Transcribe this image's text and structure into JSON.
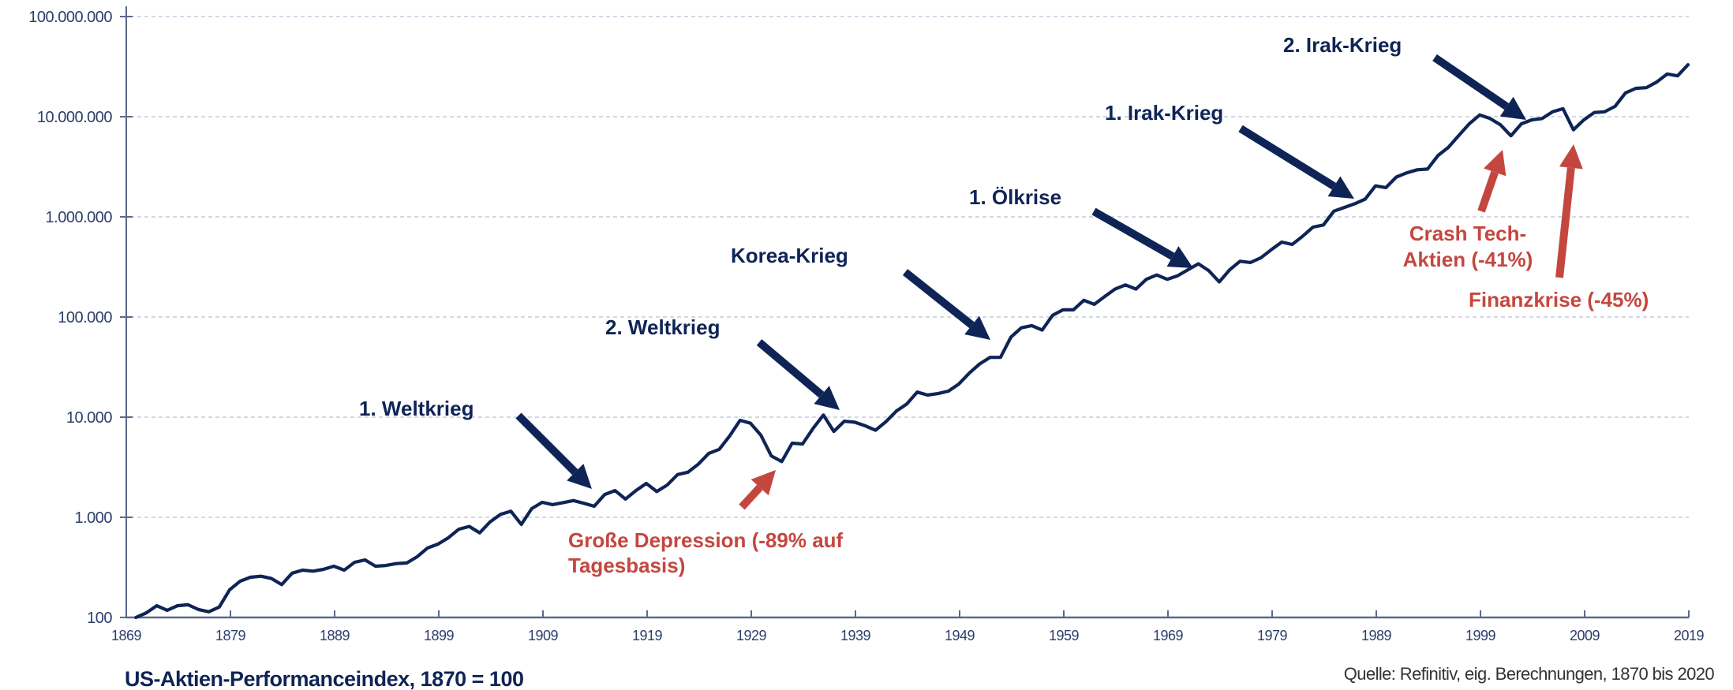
{
  "colors": {
    "line": "#0f2456",
    "annotation_blue": "#0f2456",
    "annotation_red": "#c4473f",
    "axis": "#5a6a8c",
    "grid": "#b8c2d6",
    "tick_text": "#2c3e6b",
    "source_text": "#333333"
  },
  "footer": {
    "title": "US-Aktien-Performanceindex, 1870 = 100",
    "source": "Quelle: Refinitiv, eig. Berechnungen, 1870 bis 2020"
  },
  "chart_data": {
    "type": "line",
    "title": "US-Aktien-Performanceindex, 1870 = 100",
    "xlabel": "",
    "ylabel": "",
    "yscale": "log",
    "xlim": [
      1869,
      2019
    ],
    "ylim": [
      100,
      100000000
    ],
    "grid": true,
    "x_ticks": [
      1869,
      1879,
      1889,
      1899,
      1909,
      1919,
      1929,
      1939,
      1949,
      1959,
      1969,
      1979,
      1989,
      1999,
      2009,
      2019
    ],
    "x_tick_labels": [
      "1869",
      "1879",
      "1889",
      "1899",
      "1909",
      "1919",
      "1929",
      "1939",
      "1949",
      "1959",
      "1969",
      "1979",
      "1989",
      "1999",
      "2009",
      "2019"
    ],
    "y_ticks": [
      100,
      1000,
      10000,
      100000,
      1000000,
      10000000,
      100000000
    ],
    "y_tick_labels": [
      "100",
      "1.000",
      "10.000",
      "100.000",
      "1.000.000",
      "10.000.000",
      "100.000.000"
    ],
    "series": [
      {
        "name": "US-Aktien-Performanceindex",
        "x": [
          1870,
          1871,
          1872,
          1873,
          1874,
          1875,
          1876,
          1877,
          1878,
          1879,
          1880,
          1881,
          1882,
          1883,
          1884,
          1885,
          1886,
          1887,
          1888,
          1889,
          1890,
          1891,
          1892,
          1893,
          1894,
          1895,
          1896,
          1897,
          1898,
          1899,
          1900,
          1901,
          1902,
          1903,
          1904,
          1905,
          1906,
          1907,
          1908,
          1909,
          1910,
          1911,
          1912,
          1913,
          1914,
          1915,
          1916,
          1917,
          1918,
          1919,
          1920,
          1921,
          1922,
          1923,
          1924,
          1925,
          1926,
          1927,
          1928,
          1929,
          1930,
          1931,
          1932,
          1933,
          1934,
          1935,
          1936,
          1937,
          1938,
          1939,
          1940,
          1941,
          1942,
          1943,
          1944,
          1945,
          1946,
          1947,
          1948,
          1949,
          1950,
          1951,
          1952,
          1953,
          1954,
          1955,
          1956,
          1957,
          1958,
          1959,
          1960,
          1961,
          1962,
          1963,
          1964,
          1965,
          1966,
          1967,
          1968,
          1969,
          1970,
          1971,
          1972,
          1973,
          1974,
          1975,
          1976,
          1977,
          1978,
          1979,
          1980,
          1981,
          1982,
          1983,
          1984,
          1985,
          1986,
          1987,
          1988,
          1989,
          1990,
          1991,
          1992,
          1993,
          1994,
          1995,
          1996,
          1997,
          1998,
          1999,
          2000,
          2001,
          2002,
          2003,
          2004,
          2005,
          2006,
          2007,
          2008,
          2009,
          2010,
          2011,
          2012,
          2013,
          2014,
          2015,
          2016,
          2017,
          2018,
          2019
        ],
        "values": [
          100,
          111,
          131,
          118,
          131,
          134,
          120,
          114,
          127,
          189,
          230,
          252,
          258,
          245,
          213,
          277,
          297,
          290,
          302,
          325,
          297,
          356,
          375,
          325,
          330,
          345,
          350,
          404,
          494,
          540,
          625,
          760,
          810,
          700,
          900,
          1070,
          1150,
          850,
          1220,
          1410,
          1340,
          1400,
          1470,
          1380,
          1290,
          1690,
          1850,
          1520,
          1850,
          2180,
          1810,
          2100,
          2670,
          2820,
          3400,
          4350,
          4770,
          6500,
          9300,
          8700,
          6600,
          4100,
          3600,
          5500,
          5400,
          7700,
          10500,
          7200,
          9100,
          8900,
          8200,
          7400,
          9000,
          11500,
          13500,
          17800,
          16600,
          17200,
          18200,
          21400,
          27500,
          34000,
          39500,
          39500,
          63000,
          78000,
          82000,
          74000,
          104000,
          118000,
          118000,
          147000,
          134000,
          160000,
          190000,
          209000,
          190000,
          238000,
          263000,
          238000,
          258000,
          296000,
          340000,
          290000,
          224000,
          296000,
          360000,
          350000,
          390000,
          470000,
          560000,
          530000,
          640000,
          790000,
          830000,
          1140000,
          1240000,
          1350000,
          1500000,
          2040000,
          1960000,
          2500000,
          2750000,
          2950000,
          3000000,
          4100000,
          4950000,
          6500000,
          8500000,
          10400000,
          9600000,
          8300000,
          6450000,
          8500000,
          9300000,
          9600000,
          11200000,
          12000000,
          7400000,
          9300000,
          11000000,
          11200000,
          12700000,
          17300000,
          19200000,
          19500000,
          22200000,
          26700000,
          25600000,
          33000000
        ]
      }
    ],
    "annotations": [
      {
        "id": "weltkrieg-1",
        "lines": [
          "1. Weltkrieg"
        ],
        "color": "blue",
        "target_year": 1914
      },
      {
        "id": "weltkrieg-2",
        "lines": [
          "2. Weltkrieg"
        ],
        "color": "blue",
        "target_year": 1937
      },
      {
        "id": "korea-krieg",
        "lines": [
          "Korea-Krieg"
        ],
        "color": "blue",
        "target_year": 1952
      },
      {
        "id": "oelkrise-1",
        "lines": [
          "1. Ölkrise"
        ],
        "color": "blue",
        "target_year": 1972
      },
      {
        "id": "irak-krieg-1",
        "lines": [
          "1. Irak-Krieg"
        ],
        "color": "blue",
        "target_year": 1989
      },
      {
        "id": "irak-krieg-2",
        "lines": [
          "2. Irak-Krieg"
        ],
        "color": "blue",
        "target_year": 2003
      },
      {
        "id": "grosse-depression",
        "lines": [
          "Große Depression (-89% auf",
          "Tagesbasis)"
        ],
        "color": "red",
        "target_year": 1932
      },
      {
        "id": "crash-tech",
        "lines": [
          "Crash Tech-",
          "Aktien (-41%)"
        ],
        "color": "red",
        "target_year": 2002
      },
      {
        "id": "finanzkrise",
        "lines": [
          "Finanzkrise (-45%)"
        ],
        "color": "red",
        "target_year": 2008
      }
    ]
  }
}
